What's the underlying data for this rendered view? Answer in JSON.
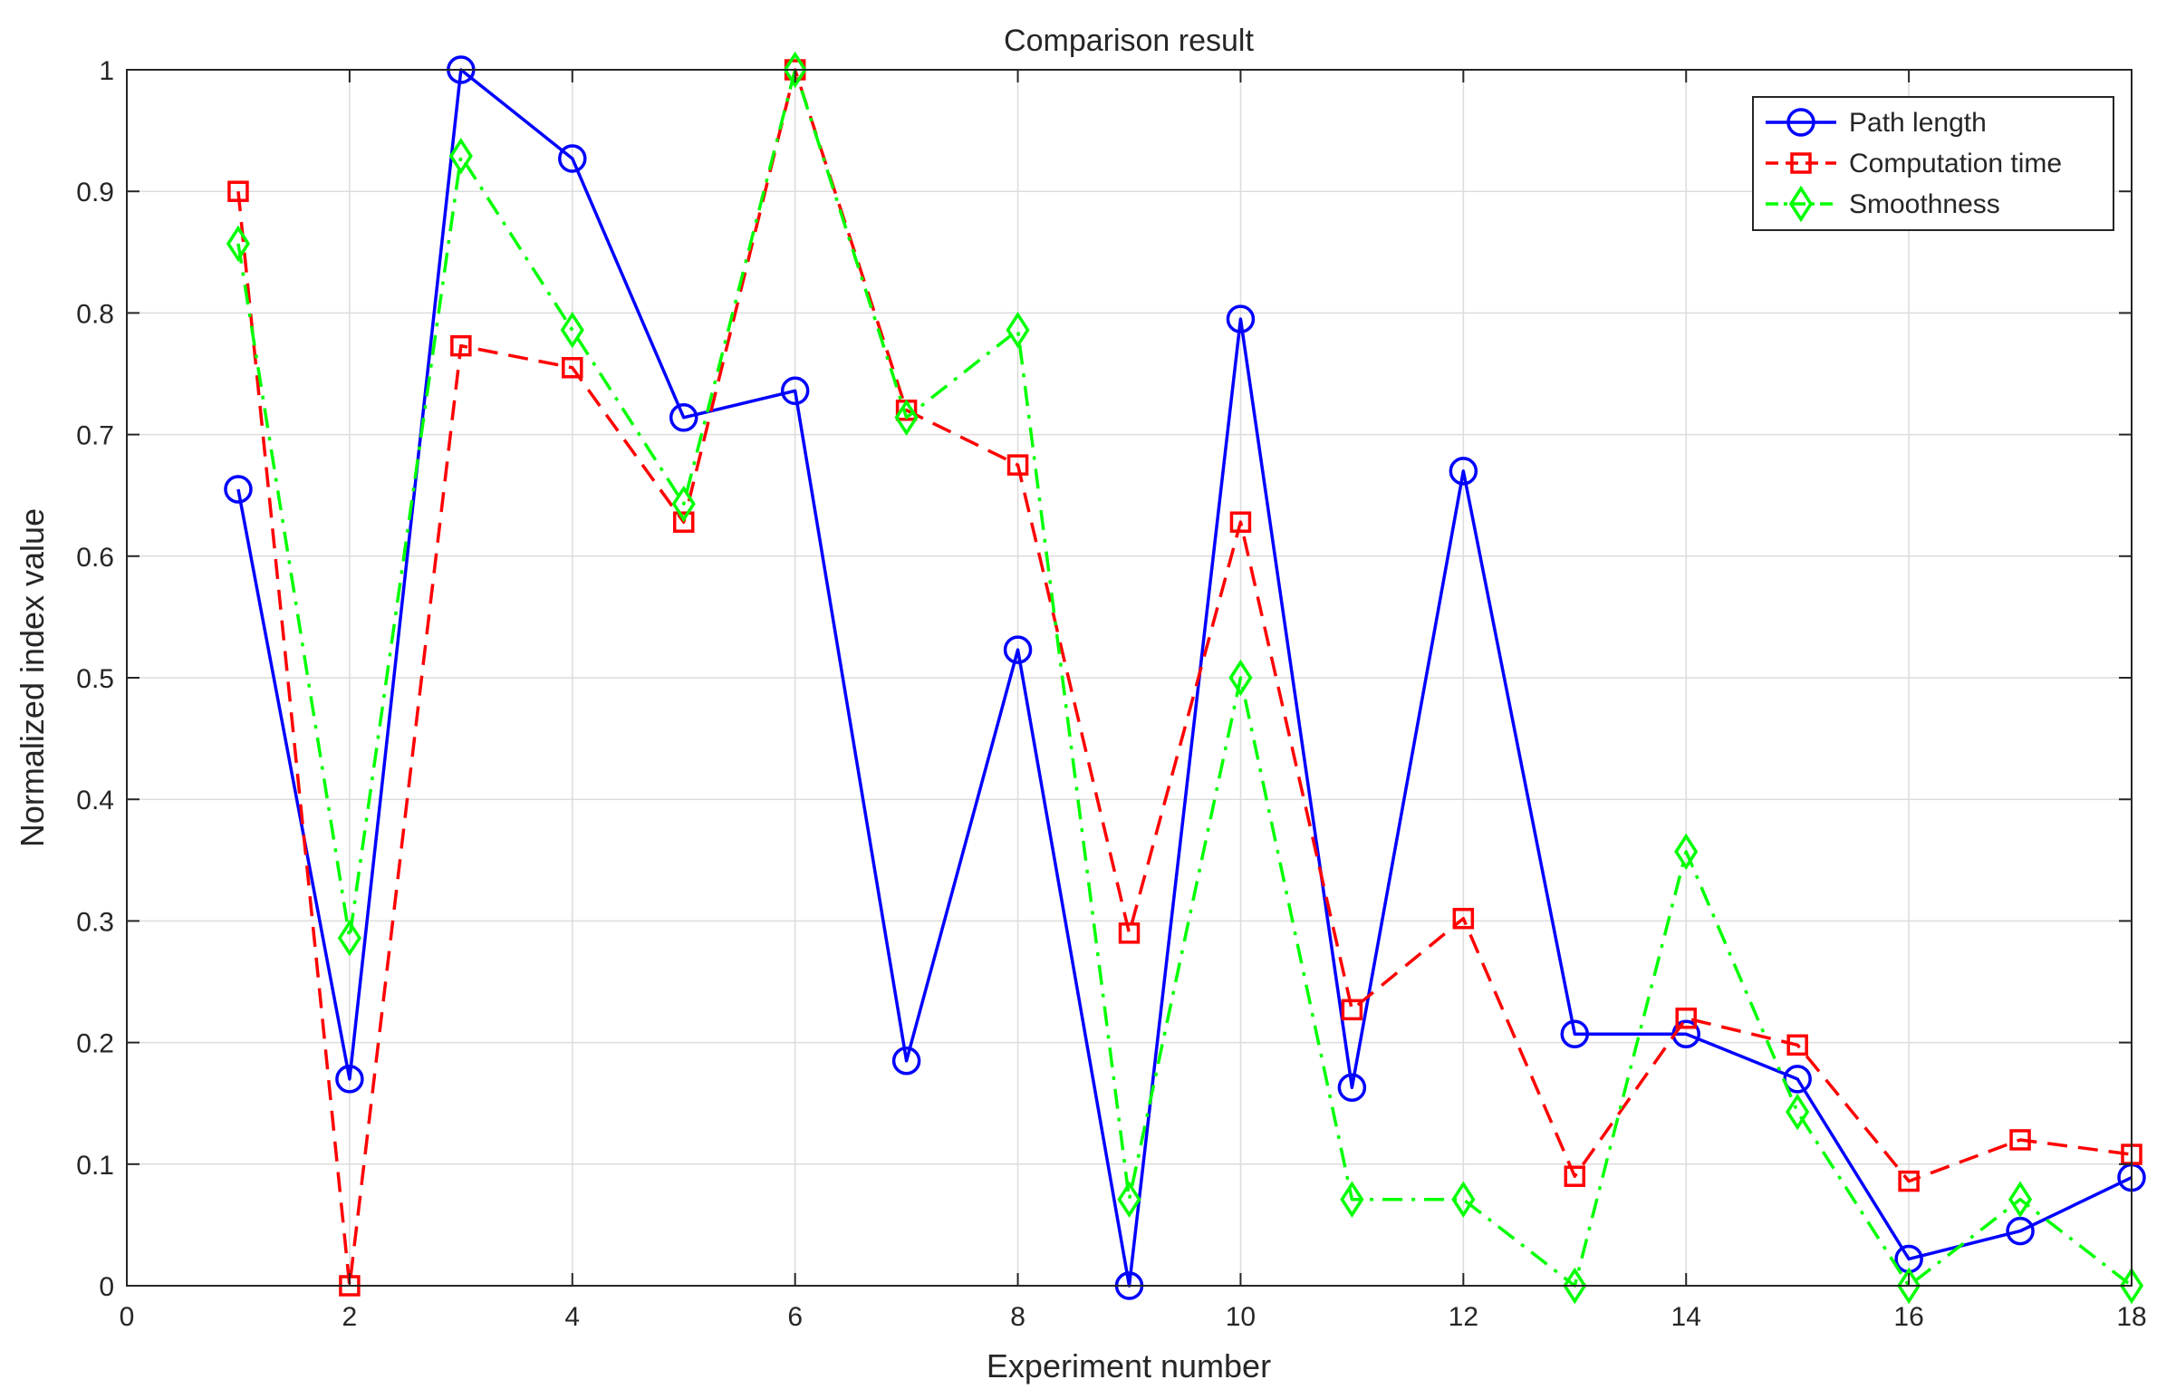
{
  "chart_data": {
    "type": "line",
    "title": "Comparison result",
    "xlabel": "Experiment number",
    "ylabel": "Normalized index value",
    "xlim": [
      0,
      18
    ],
    "ylim": [
      0,
      1
    ],
    "xticks": [
      0,
      2,
      4,
      6,
      8,
      10,
      12,
      14,
      16,
      18
    ],
    "yticks": [
      0,
      0.1,
      0.2,
      0.3,
      0.4,
      0.5,
      0.6,
      0.7,
      0.8,
      0.9,
      1
    ],
    "ytick_labels": [
      "0",
      "0.1",
      "0.2",
      "0.3",
      "0.4",
      "0.5",
      "0.6",
      "0.7",
      "0.8",
      "0.9",
      "1"
    ],
    "grid": true,
    "legend_position": "top-right",
    "x": [
      1,
      2,
      3,
      4,
      5,
      6,
      7,
      8,
      9,
      10,
      11,
      12,
      13,
      14,
      15,
      16,
      17,
      18
    ],
    "series": [
      {
        "name": "Path length",
        "color": "#0000ff",
        "line_style": "solid",
        "marker": "circle",
        "values": [
          0.655,
          0.17,
          1.0,
          0.927,
          0.714,
          0.736,
          0.185,
          0.523,
          0.0,
          0.795,
          0.163,
          0.67,
          0.207,
          0.207,
          0.17,
          0.022,
          0.045,
          0.089
        ]
      },
      {
        "name": "Computation time",
        "color": "#ff0000",
        "line_style": "dashed",
        "marker": "square",
        "values": [
          0.9,
          0.0,
          0.773,
          0.755,
          0.628,
          1.0,
          0.72,
          0.675,
          0.29,
          0.628,
          0.227,
          0.302,
          0.09,
          0.22,
          0.198,
          0.086,
          0.12,
          0.108
        ]
      },
      {
        "name": "Smoothness",
        "color": "#00ff00",
        "line_style": "dashdot",
        "marker": "diamond",
        "values": [
          0.857,
          0.286,
          0.929,
          0.786,
          0.643,
          1.0,
          0.714,
          0.786,
          0.071,
          0.5,
          0.071,
          0.071,
          0.0,
          0.357,
          0.143,
          0.0,
          0.071,
          0.0
        ]
      }
    ]
  }
}
